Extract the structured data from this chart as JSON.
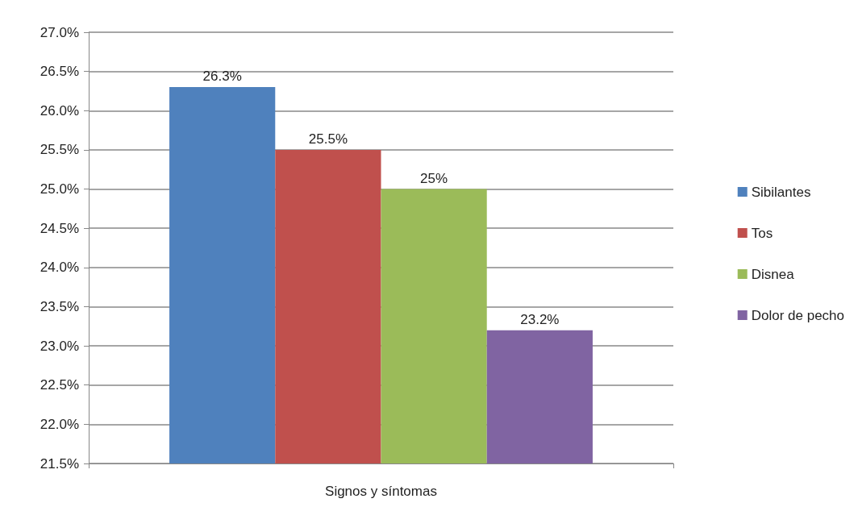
{
  "chart_data": {
    "type": "bar",
    "xlabel": "Signos y síntomas",
    "categories": [
      null
    ],
    "series": [
      {
        "name": "Sibilantes",
        "color": "#4f81bd",
        "values": [
          26.3
        ],
        "value_labels": [
          "26.3%"
        ]
      },
      {
        "name": "Tos",
        "color": "#c0504d",
        "values": [
          25.5
        ],
        "value_labels": [
          "25.5%"
        ]
      },
      {
        "name": "Disnea",
        "color": "#9bbb59",
        "values": [
          25
        ],
        "value_labels": [
          "25%"
        ]
      },
      {
        "name": "Dolor de pecho",
        "color": "#8064a2",
        "values": [
          23.2
        ],
        "value_labels": [
          "23.2%"
        ]
      }
    ],
    "ylim": [
      21.5,
      27
    ],
    "yticks": [
      {
        "value": 21.5,
        "label": "21.5%"
      },
      {
        "value": 22,
        "label": "22.0%"
      },
      {
        "value": 22.5,
        "label": "22.5%"
      },
      {
        "value": 23,
        "label": "23.0%"
      },
      {
        "value": 23.5,
        "label": "23.5%"
      },
      {
        "value": 24,
        "label": "24.0%"
      },
      {
        "value": 24.5,
        "label": "24.5%"
      },
      {
        "value": 25,
        "label": "25.0%"
      },
      {
        "value": 25.5,
        "label": "25.5%"
      },
      {
        "value": 26,
        "label": "26.0%"
      },
      {
        "value": 26.5,
        "label": "26.5%"
      },
      {
        "value": 27,
        "label": "27.0%"
      }
    ],
    "grid": "y",
    "legend": "right"
  }
}
